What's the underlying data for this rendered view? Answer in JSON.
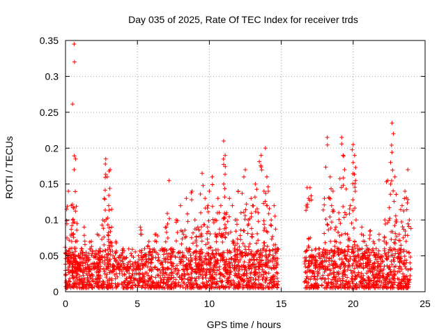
{
  "chart_data": {
    "type": "scatter",
    "title": "Day 035 of 2025, Rate Of TEC Index for receiver trds",
    "xlabel": "GPS time / hours",
    "ylabel": "ROTI / TECUs",
    "xlim": [
      0,
      25
    ],
    "ylim": [
      0,
      0.35
    ],
    "xticks": [
      0,
      5,
      10,
      15,
      20,
      25
    ],
    "xtick_labels": [
      "0",
      "5",
      "10",
      "15",
      "20",
      "25"
    ],
    "yticks": [
      0,
      0.05,
      0.1,
      0.15,
      0.2,
      0.25,
      0.3,
      0.35
    ],
    "ytick_labels": [
      "0",
      "0.05",
      "0.1",
      "0.15",
      "0.2",
      "0.25",
      "0.3",
      "0.35"
    ],
    "grid": true,
    "marker": "+",
    "color": "#ff0000",
    "series": [
      {
        "name": "ROTI",
        "x": [
          0.1,
          0.2,
          0.3,
          0.4,
          0.5,
          0.5,
          0.6,
          0.6,
          0.7,
          0.7,
          0.8,
          0.8,
          0.9,
          1.0,
          1.1,
          1.3,
          1.5,
          1.6,
          1.8,
          2.0,
          2.2,
          2.4,
          2.6,
          2.7,
          2.8,
          2.9,
          3.0,
          3.0,
          3.1,
          3.2,
          3.3,
          3.5,
          3.7,
          4.0,
          4.3,
          4.6,
          5.0,
          5.2,
          5.5,
          5.8,
          6.0,
          6.3,
          6.7,
          7.0,
          7.2,
          7.4,
          7.7,
          8.0,
          8.2,
          8.4,
          8.6,
          8.8,
          9.0,
          9.2,
          9.4,
          9.5,
          9.7,
          9.9,
          10.0,
          10.2,
          10.4,
          10.6,
          10.8,
          11.0,
          11.0,
          11.1,
          11.2,
          11.4,
          11.6,
          11.8,
          12.0,
          12.2,
          12.4,
          12.5,
          12.7,
          12.9,
          13.0,
          13.2,
          13.4,
          13.6,
          13.8,
          13.9,
          14.0,
          14.1,
          14.3,
          14.5,
          14.7,
          16.8,
          16.9,
          17.0,
          17.2,
          17.4,
          17.6,
          17.8,
          18.0,
          18.2,
          18.4,
          18.5,
          18.6,
          18.8,
          19.0,
          19.2,
          19.3,
          19.4,
          19.6,
          19.8,
          20.0,
          20.0,
          20.1,
          20.2,
          20.4,
          20.6,
          20.8,
          21.0,
          21.2,
          21.4,
          21.6,
          21.8,
          22.0,
          22.2,
          22.4,
          22.6,
          22.7,
          22.8,
          22.9,
          23.0,
          23.2,
          23.4,
          23.6,
          23.8,
          23.9
        ],
        "y": [
          0.075,
          0.14,
          0.06,
          0.12,
          0.08,
          0.1,
          0.345,
          0.17,
          0.185,
          0.07,
          0.04,
          0.095,
          0.05,
          0.03,
          0.06,
          0.09,
          0.05,
          0.035,
          0.07,
          0.04,
          0.08,
          0.06,
          0.1,
          0.13,
          0.185,
          0.16,
          0.12,
          0.07,
          0.17,
          0.09,
          0.05,
          0.07,
          0.04,
          0.06,
          0.035,
          0.05,
          0.04,
          0.09,
          0.06,
          0.07,
          0.05,
          0.08,
          0.06,
          0.09,
          0.155,
          0.06,
          0.1,
          0.12,
          0.08,
          0.13,
          0.06,
          0.14,
          0.1,
          0.09,
          0.11,
          0.165,
          0.13,
          0.12,
          0.14,
          0.16,
          0.1,
          0.13,
          0.12,
          0.15,
          0.21,
          0.19,
          0.11,
          0.13,
          0.12,
          0.1,
          0.14,
          0.11,
          0.16,
          0.17,
          0.1,
          0.13,
          0.12,
          0.15,
          0.11,
          0.19,
          0.14,
          0.2,
          0.16,
          0.14,
          0.1,
          0.12,
          0.06,
          0.145,
          0.13,
          0.145,
          0.05,
          0.04,
          0.06,
          0.05,
          0.13,
          0.215,
          0.16,
          0.12,
          0.14,
          0.09,
          0.11,
          0.215,
          0.19,
          0.17,
          0.08,
          0.12,
          0.205,
          0.18,
          0.19,
          0.1,
          0.06,
          0.09,
          0.07,
          0.06,
          0.085,
          0.07,
          0.06,
          0.08,
          0.05,
          0.1,
          0.155,
          0.15,
          0.235,
          0.22,
          0.16,
          0.1,
          0.08,
          0.12,
          0.14,
          0.17,
          0.1
        ],
        "baseline_band": {
          "min": 0.005,
          "max": 0.06,
          "segments": [
            [
              0.0,
              14.8
            ],
            [
              16.6,
              24.0
            ]
          ]
        }
      }
    ]
  }
}
